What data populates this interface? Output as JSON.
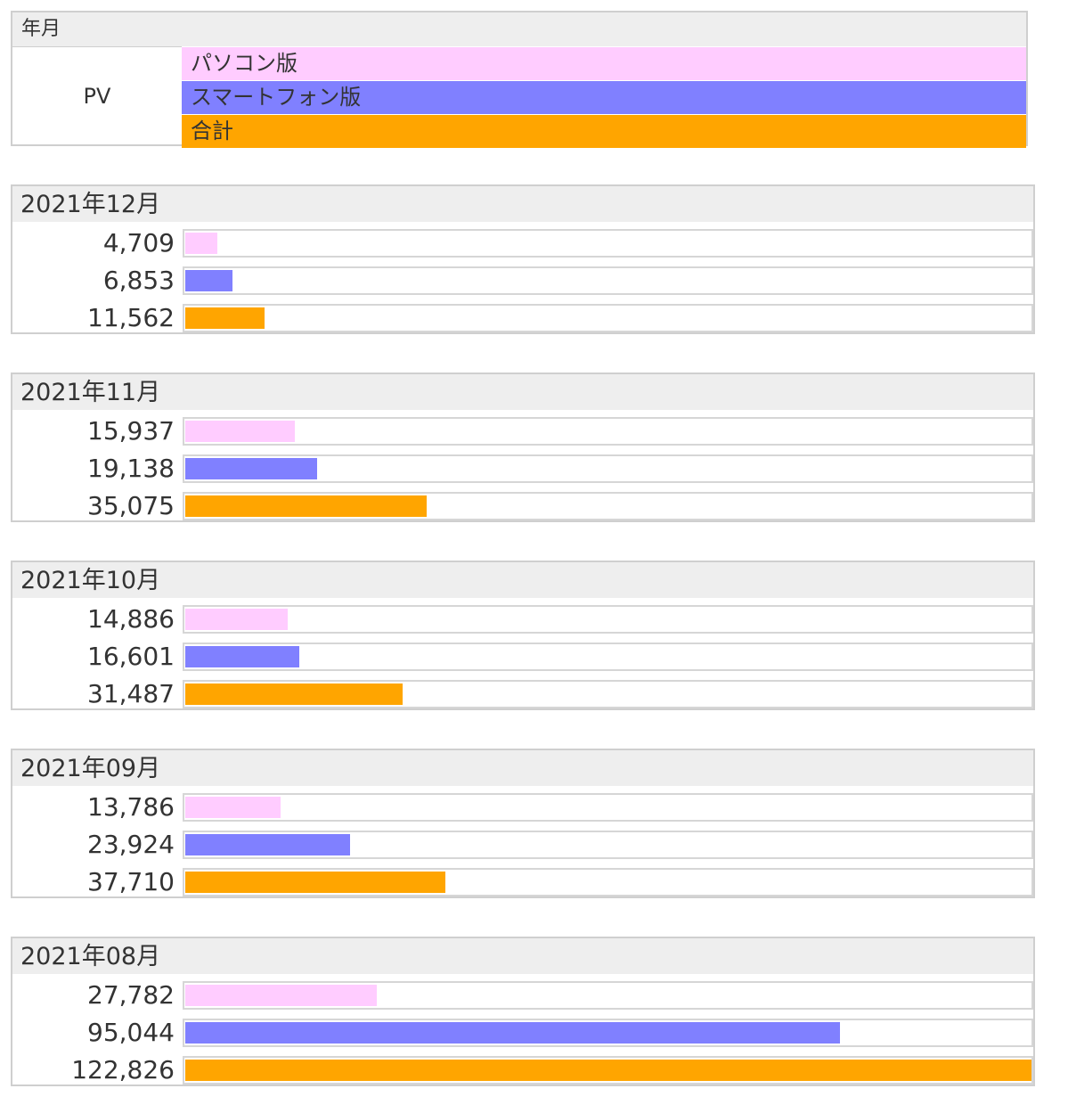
{
  "legend": {
    "header": "年月",
    "pv_label": "PV",
    "series": [
      {
        "name": "パソコン版",
        "color": "#ffccff"
      },
      {
        "name": "スマートフォン版",
        "color": "#8080ff"
      },
      {
        "name": "合計",
        "color": "#ffa500"
      }
    ]
  },
  "chart_data": {
    "type": "bar",
    "orientation": "horizontal",
    "xlim": [
      0,
      122826
    ],
    "series_names": [
      "パソコン版",
      "スマートフォン版",
      "合計"
    ],
    "colors": [
      "#ffccff",
      "#8080ff",
      "#ffa500"
    ],
    "months": [
      {
        "label": "2021年12月",
        "values": [
          4709,
          6853,
          11562
        ],
        "display": [
          "4,709",
          "6,853",
          "11,562"
        ]
      },
      {
        "label": "2021年11月",
        "values": [
          15937,
          19138,
          35075
        ],
        "display": [
          "15,937",
          "19,138",
          "35,075"
        ]
      },
      {
        "label": "2021年10月",
        "values": [
          14886,
          16601,
          31487
        ],
        "display": [
          "14,886",
          "16,601",
          "31,487"
        ]
      },
      {
        "label": "2021年09月",
        "values": [
          13786,
          23924,
          37710
        ],
        "display": [
          "13,786",
          "23,924",
          "37,710"
        ]
      },
      {
        "label": "2021年08月",
        "values": [
          27782,
          95044,
          122826
        ],
        "display": [
          "27,782",
          "95,044",
          "122,826"
        ]
      }
    ]
  }
}
